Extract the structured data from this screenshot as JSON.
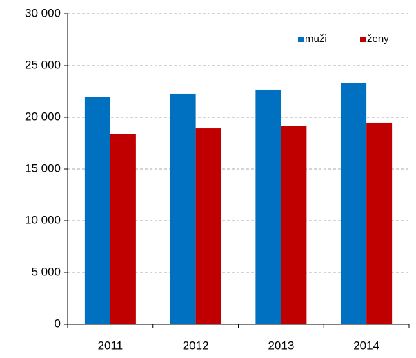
{
  "chart_data": {
    "type": "bar",
    "categories": [
      "2011",
      "2012",
      "2013",
      "2014"
    ],
    "series": [
      {
        "name": "muži",
        "color": "#0070c0",
        "values": [
          22000,
          22270,
          22670,
          23270
        ]
      },
      {
        "name": "ženy",
        "color": "#c00000",
        "values": [
          18400,
          18930,
          19200,
          19470
        ]
      }
    ],
    "ylim": [
      0,
      30000
    ],
    "yticks": [
      0,
      {
        "value": 5000,
        "label": "5 000"
      },
      {
        "value": 10000,
        "label": "10 000"
      },
      {
        "value": 15000,
        "label": "15 000"
      },
      {
        "value": 20000,
        "label": "20 000"
      },
      {
        "value": 25000,
        "label": "25 000"
      },
      {
        "value": 30000,
        "label": "30 000"
      }
    ],
    "grid": true,
    "legend": "top-right"
  }
}
